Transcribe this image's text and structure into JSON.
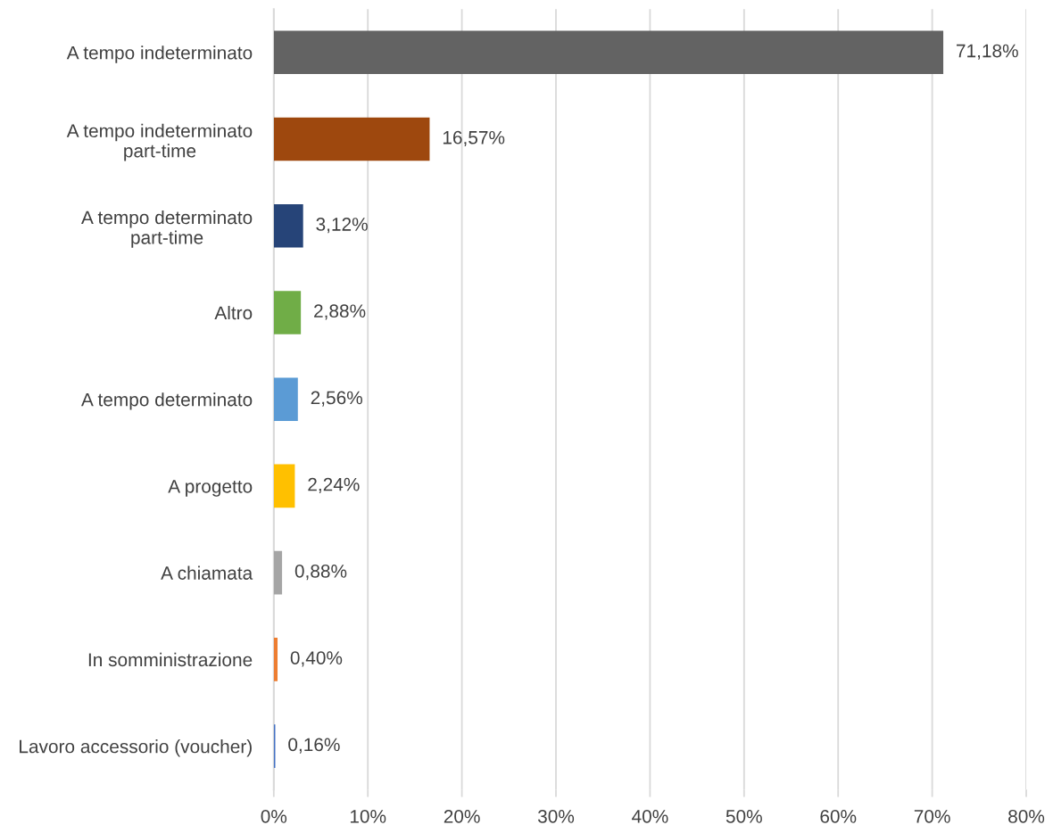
{
  "chart_data": {
    "type": "bar",
    "orientation": "horizontal",
    "categories": [
      "A tempo indeterminato",
      "A tempo indeterminato\npart-time",
      "A tempo determinato\npart-time",
      "Altro",
      "A tempo determinato",
      "A progetto",
      "A chiamata",
      "In somministrazione",
      "Lavoro accessorio (voucher)"
    ],
    "values": [
      71.18,
      16.57,
      3.12,
      2.88,
      2.56,
      2.24,
      0.88,
      0.4,
      0.16
    ],
    "colors": [
      "#636363",
      "#9e480e",
      "#264478",
      "#70ad47",
      "#5b9bd5",
      "#ffc000",
      "#a5a5a5",
      "#ed7d31",
      "#4472c4"
    ],
    "value_labels": [
      "71,18%",
      "16,57%",
      "3,12%",
      "2,88%",
      "2,56%",
      "2,24%",
      "0,88%",
      "0,40%",
      "0,16%"
    ],
    "xlim": [
      0,
      80
    ],
    "xticks": [
      {
        "value": 0,
        "label": "0%"
      },
      {
        "value": 10,
        "label": "10%"
      },
      {
        "value": 20,
        "label": "20%"
      },
      {
        "value": 30,
        "label": "30%"
      },
      {
        "value": 40,
        "label": "40%"
      },
      {
        "value": 50,
        "label": "50%"
      },
      {
        "value": 60,
        "label": "60%"
      },
      {
        "value": 70,
        "label": "70%"
      },
      {
        "value": 80,
        "label": "80%"
      }
    ],
    "grid": "x"
  }
}
